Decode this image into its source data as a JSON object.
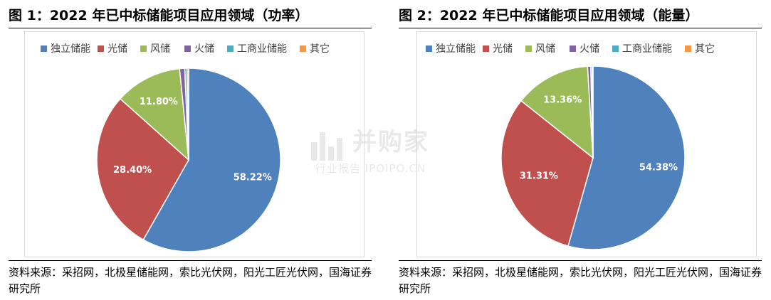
{
  "figures": [
    {
      "title": "图 1：2022 年已中标储能项目应用领域（功率）",
      "source": "资料来源：采招网，北极星储能网，索比光伏网，阳光工匠光伏网，国海证券研究所"
    },
    {
      "title": "图 2：2022 年已中标储能项目应用领域（能量）",
      "source": "资料来源：采招网，北极星储能网，索比光伏网，阳光工匠光伏网，国海证券研究所"
    }
  ],
  "legend": [
    "独立储能",
    "光储",
    "风储",
    "火储",
    "工商业储能",
    "其它"
  ],
  "colors": [
    "#4f81bd",
    "#c0504d",
    "#9bbb59",
    "#8064a2",
    "#4bacc6",
    "#f79646"
  ],
  "watermark": {
    "main": "并购家",
    "sub": "行业报告 IPOIPO.CN"
  },
  "chart_data": [
    {
      "type": "pie",
      "title": "图 1：2022 年已中标储能项目应用领域（功率）",
      "categories": [
        "独立储能",
        "光储",
        "风储",
        "火储",
        "工商业储能",
        "其它"
      ],
      "values": [
        58.22,
        28.4,
        11.8,
        0.9,
        0.4,
        0.28
      ],
      "labels": [
        "58.22%",
        "28.40%",
        "11.80%",
        "",
        "",
        ""
      ],
      "legend_position": "top"
    },
    {
      "type": "pie",
      "title": "图 2：2022 年已中标储能项目应用领域（能量）",
      "categories": [
        "独立储能",
        "光储",
        "风储",
        "火储",
        "工商业储能",
        "其它"
      ],
      "values": [
        54.38,
        31.31,
        13.36,
        0.55,
        0.25,
        0.15
      ],
      "labels": [
        "54.38%",
        "31.31%",
        "13.36%",
        "",
        "",
        ""
      ],
      "legend_position": "top"
    }
  ]
}
